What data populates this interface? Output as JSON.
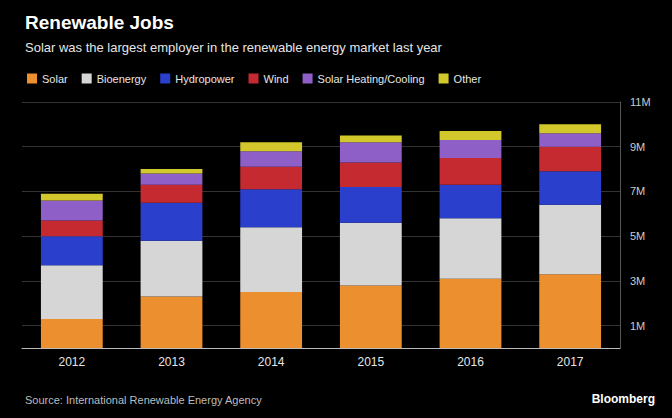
{
  "chart_data": {
    "type": "bar",
    "title": "Renewable Jobs",
    "subtitle": "Solar was the largest employer in the renewable energy market last year",
    "source": "Source: International Renewable Energy Agency",
    "credit": "Bloomberg",
    "categories": [
      "2012",
      "2013",
      "2014",
      "2015",
      "2016",
      "2017"
    ],
    "stacked": true,
    "grid": true,
    "legend": "top-left",
    "series": [
      {
        "name": "Solar",
        "color": "#ec8f2f",
        "values": [
          1.3,
          2.3,
          2.5,
          2.8,
          3.1,
          3.3
        ]
      },
      {
        "name": "Bioenergy",
        "color": "#d6d6d6",
        "values": [
          2.4,
          2.5,
          2.9,
          2.8,
          2.7,
          3.1
        ]
      },
      {
        "name": "Hydropower",
        "color": "#2a3fcc",
        "values": [
          1.3,
          1.7,
          1.7,
          1.6,
          1.5,
          1.5
        ]
      },
      {
        "name": "Wind",
        "color": "#c42a2f",
        "values": [
          0.7,
          0.8,
          1.0,
          1.1,
          1.2,
          1.1
        ]
      },
      {
        "name": "Solar Heating/Cooling",
        "color": "#8f5fc8",
        "values": [
          0.9,
          0.5,
          0.7,
          0.9,
          0.8,
          0.6
        ]
      },
      {
        "name": "Other",
        "color": "#d2c82c",
        "values": [
          0.3,
          0.2,
          0.4,
          0.3,
          0.4,
          0.4
        ]
      }
    ],
    "ylim": [
      0,
      11
    ],
    "yticks": [
      {
        "value": 1,
        "label": "1M"
      },
      {
        "value": 3,
        "label": "3M"
      },
      {
        "value": 5,
        "label": "5M"
      },
      {
        "value": 7,
        "label": "7M"
      },
      {
        "value": 9,
        "label": "9M"
      },
      {
        "value": 11,
        "label": "11M"
      }
    ]
  }
}
